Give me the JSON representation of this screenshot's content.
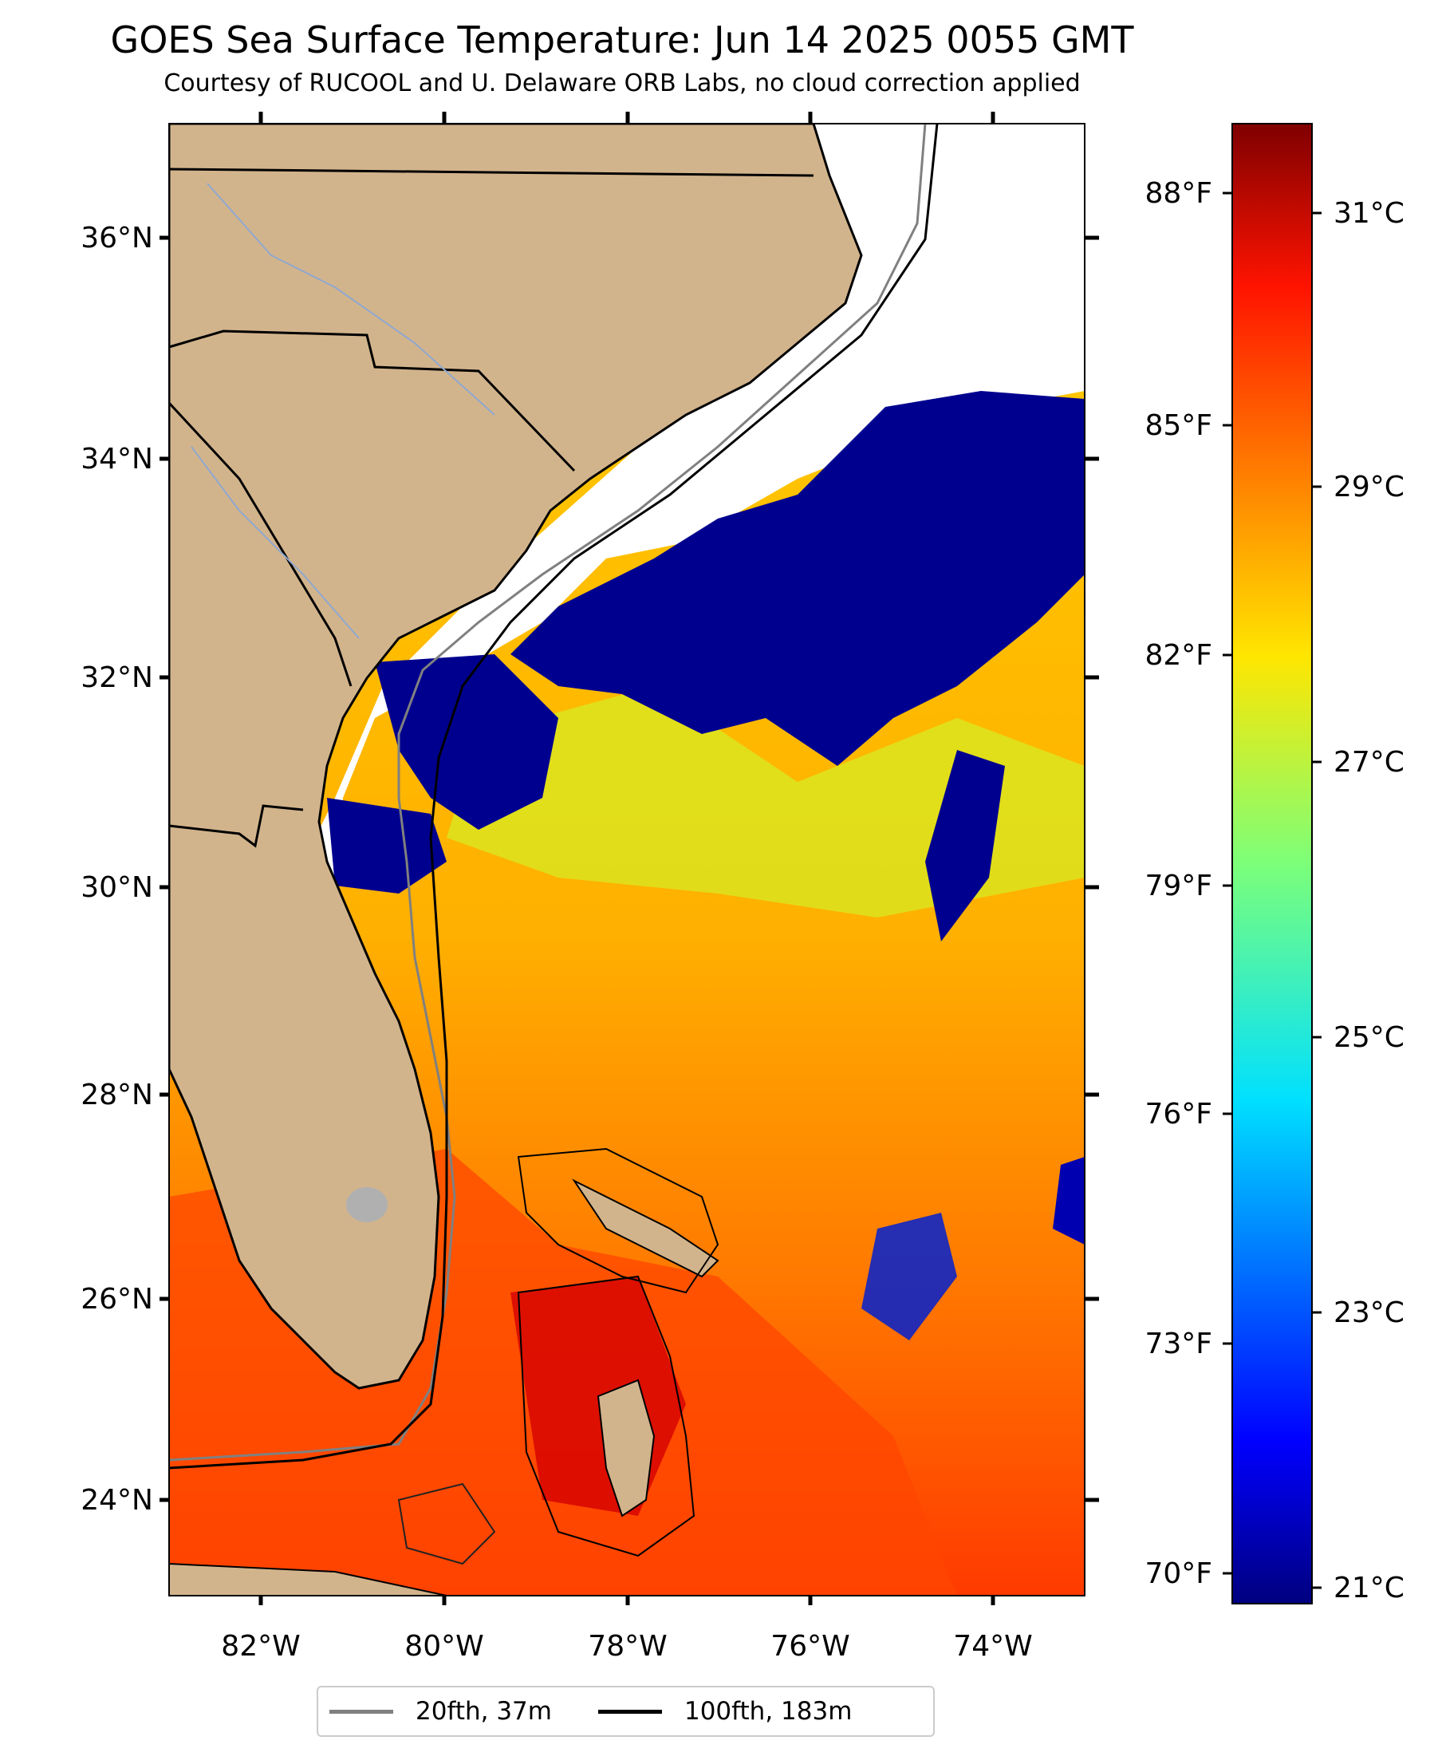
{
  "title": "GOES Sea Surface Temperature: Jun 14 2025 0055 GMT",
  "subtitle": "Courtesy of RUCOOL and U. Delaware ORB Labs, no cloud correction applied",
  "map": {
    "lon_range": [
      -83.0,
      -73.0
    ],
    "lat_range": [
      23.0,
      37.0
    ],
    "lat_ticks": [
      "36°N",
      "34°N",
      "32°N",
      "30°N",
      "28°N",
      "26°N",
      "24°N"
    ],
    "lon_ticks": [
      "82°W",
      "80°W",
      "78°W",
      "76°W",
      "74°W"
    ],
    "land_color": "#D2B48C",
    "no_data_color": "#FFFFFF",
    "cold_cloud_color": "#00008F"
  },
  "colorbar": {
    "celsius_labels": [
      "31°C",
      "29°C",
      "27°C",
      "25°C",
      "23°C",
      "21°C"
    ],
    "fahrenheit_labels": [
      "88°F",
      "85°F",
      "82°F",
      "79°F",
      "76°F",
      "73°F",
      "70°F"
    ],
    "colormap": "jet",
    "range_c": [
      20.8,
      32.0
    ]
  },
  "legend": {
    "items": [
      {
        "label": "20fth, 37m",
        "color": "#808080"
      },
      {
        "label": "100fth, 183m",
        "color": "#000000"
      }
    ]
  }
}
